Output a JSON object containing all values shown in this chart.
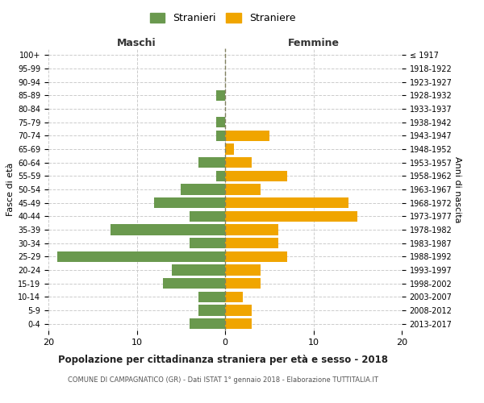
{
  "age_groups": [
    "100+",
    "95-99",
    "90-94",
    "85-89",
    "80-84",
    "75-79",
    "70-74",
    "65-69",
    "60-64",
    "55-59",
    "50-54",
    "45-49",
    "40-44",
    "35-39",
    "30-34",
    "25-29",
    "20-24",
    "15-19",
    "10-14",
    "5-9",
    "0-4"
  ],
  "birth_years": [
    "≤ 1917",
    "1918-1922",
    "1923-1927",
    "1928-1932",
    "1933-1937",
    "1938-1942",
    "1943-1947",
    "1948-1952",
    "1953-1957",
    "1958-1962",
    "1963-1967",
    "1968-1972",
    "1973-1977",
    "1978-1982",
    "1983-1987",
    "1988-1992",
    "1993-1997",
    "1998-2002",
    "2003-2007",
    "2008-2012",
    "2013-2017"
  ],
  "males": [
    0,
    0,
    0,
    1,
    0,
    1,
    1,
    0,
    3,
    1,
    5,
    8,
    4,
    13,
    4,
    19,
    6,
    7,
    3,
    3,
    4
  ],
  "females": [
    0,
    0,
    0,
    0,
    0,
    0,
    5,
    1,
    3,
    7,
    4,
    14,
    15,
    6,
    6,
    7,
    4,
    4,
    2,
    3,
    3
  ],
  "male_color": "#6a994e",
  "female_color": "#f0a500",
  "male_label": "Stranieri",
  "female_label": "Straniere",
  "title": "Popolazione per cittadinanza straniera per età e sesso - 2018",
  "subtitle": "COMUNE DI CAMPAGNATICO (GR) - Dati ISTAT 1° gennaio 2018 - Elaborazione TUTTITALIA.IT",
  "xlabel_left": "Maschi",
  "xlabel_right": "Femmine",
  "ylabel_left": "Fasce di età",
  "ylabel_right": "Anni di nascita",
  "xlim": 20,
  "background_color": "#ffffff",
  "grid_color": "#cccccc",
  "center_line_color": "#808060",
  "bar_height": 0.8
}
